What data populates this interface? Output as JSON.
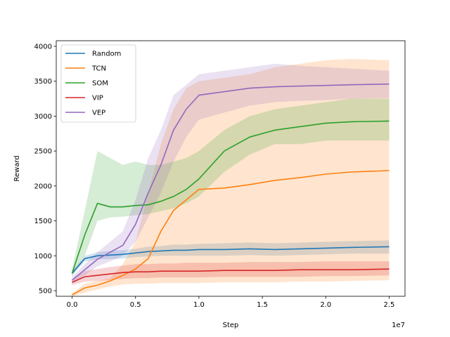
{
  "chart_data": {
    "type": "line",
    "title": "",
    "xlabel": "Step",
    "ylabel": "Reward",
    "x_offset_label": "1e7",
    "xlim": [
      -0.125,
      2.625
    ],
    "ylim": [
      420,
      4080
    ],
    "xticks": [
      0.0,
      0.5,
      1.0,
      1.5,
      2.0,
      2.5
    ],
    "xtick_labels": [
      "0.0",
      "0.5",
      "1.0",
      "1.5",
      "2.0",
      "2.5"
    ],
    "yticks": [
      500,
      1000,
      1500,
      2000,
      2500,
      3000,
      3500,
      4000
    ],
    "ytick_labels": [
      "500",
      "1000",
      "1500",
      "2000",
      "2500",
      "3000",
      "3500",
      "4000"
    ],
    "grid": false,
    "legend": "upper-left",
    "x": [
      0.0,
      0.1,
      0.2,
      0.3,
      0.4,
      0.5,
      0.6,
      0.7,
      0.8,
      0.9,
      1.0,
      1.2,
      1.4,
      1.6,
      1.8,
      2.0,
      2.2,
      2.5
    ],
    "series": [
      {
        "name": "Random",
        "color": "#1f77b4",
        "values": [
          750,
          960,
          1000,
          1010,
          1020,
          1040,
          1060,
          1070,
          1080,
          1080,
          1090,
          1090,
          1100,
          1090,
          1100,
          1110,
          1120,
          1130
        ],
        "lower": [
          720,
          920,
          950,
          950,
          960,
          980,
          990,
          1000,
          1000,
          1000,
          1000,
          1000,
          1010,
          1000,
          1010,
          1020,
          1030,
          1030
        ],
        "upper": [
          780,
          1000,
          1050,
          1070,
          1080,
          1100,
          1130,
          1140,
          1160,
          1160,
          1170,
          1180,
          1190,
          1180,
          1190,
          1200,
          1210,
          1220
        ]
      },
      {
        "name": "TCN",
        "color": "#ff7f0e",
        "values": [
          440,
          540,
          580,
          640,
          720,
          810,
          960,
          1350,
          1650,
          1800,
          1950,
          1970,
          2020,
          2080,
          2120,
          2170,
          2200,
          2220
        ],
        "lower": [
          420,
          470,
          520,
          560,
          590,
          600,
          600,
          610,
          610,
          610,
          610,
          620,
          620,
          620,
          630,
          630,
          640,
          650
        ],
        "upper": [
          460,
          600,
          640,
          680,
          880,
          1200,
          1900,
          2600,
          3100,
          3400,
          3500,
          3550,
          3600,
          3700,
          3750,
          3800,
          3820,
          3800
        ]
      },
      {
        "name": "SOM",
        "color": "#2ca02c",
        "values": [
          750,
          1300,
          1750,
          1700,
          1700,
          1720,
          1730,
          1780,
          1850,
          1950,
          2100,
          2500,
          2700,
          2800,
          2850,
          2900,
          2920,
          2930
        ],
        "lower": [
          700,
          1000,
          1500,
          1550,
          1560,
          1580,
          1600,
          1640,
          1680,
          1750,
          1850,
          2200,
          2450,
          2600,
          2600,
          2650,
          2650,
          2650
        ],
        "upper": [
          800,
          1650,
          2500,
          2400,
          2300,
          2350,
          2300,
          2300,
          2350,
          2400,
          2500,
          2800,
          3000,
          3100,
          3150,
          3200,
          3250,
          3250
        ]
      },
      {
        "name": "VIP",
        "color": "#d62728",
        "values": [
          620,
          700,
          720,
          740,
          760,
          770,
          770,
          780,
          780,
          780,
          780,
          790,
          790,
          790,
          800,
          800,
          800,
          810
        ],
        "lower": [
          580,
          630,
          640,
          650,
          670,
          680,
          680,
          690,
          690,
          690,
          690,
          700,
          700,
          700,
          700,
          710,
          710,
          720
        ],
        "upper": [
          660,
          780,
          810,
          840,
          860,
          880,
          880,
          890,
          890,
          900,
          900,
          900,
          910,
          910,
          910,
          920,
          920,
          920
        ]
      },
      {
        "name": "VEP",
        "color": "#9467bd",
        "values": [
          650,
          800,
          950,
          1050,
          1150,
          1450,
          1900,
          2300,
          2800,
          3100,
          3300,
          3350,
          3400,
          3420,
          3430,
          3440,
          3450,
          3460
        ],
        "lower": [
          600,
          720,
          850,
          920,
          1000,
          1200,
          1550,
          1900,
          2350,
          2700,
          2950,
          3050,
          3150,
          3200,
          3220,
          3230,
          3250,
          3260
        ],
        "upper": [
          700,
          880,
          1050,
          1200,
          1350,
          1800,
          2400,
          2800,
          3300,
          3450,
          3600,
          3650,
          3700,
          3750,
          3720,
          3700,
          3680,
          3650
        ]
      }
    ]
  }
}
